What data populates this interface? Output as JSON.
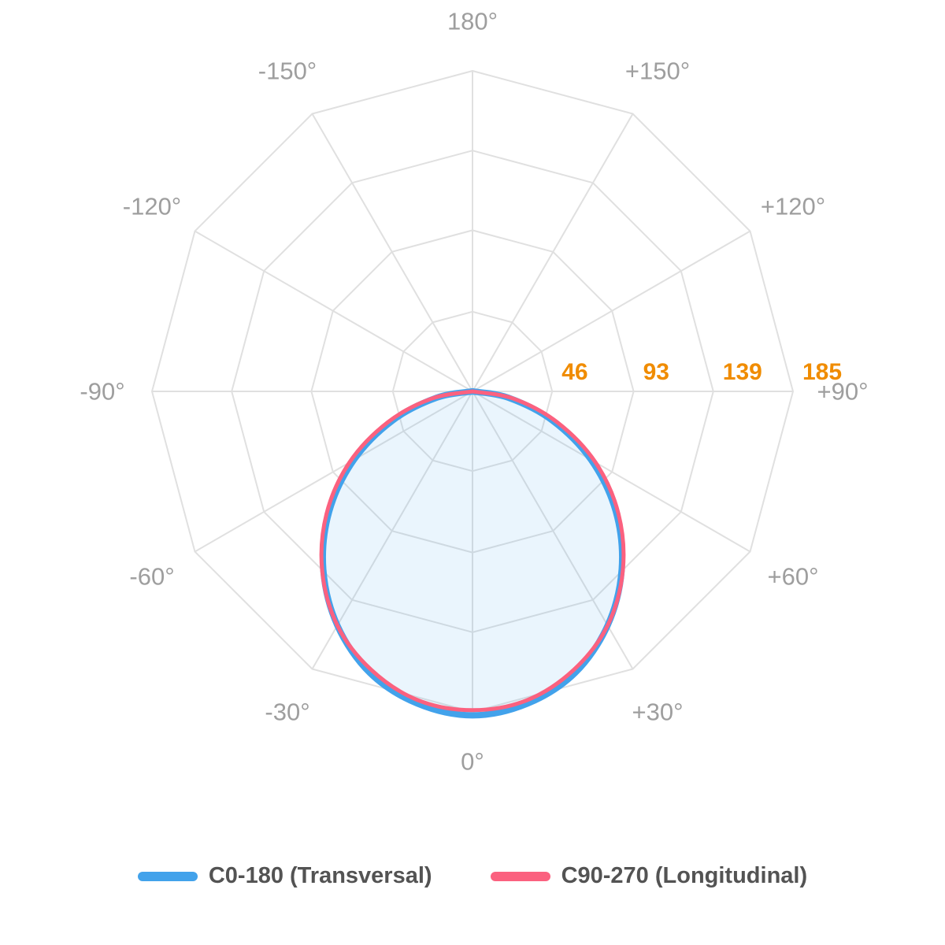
{
  "chart_data": {
    "type": "polar-photometric",
    "description": "Luminous intensity distribution polar curve, 0 degrees at bottom",
    "angle_axis": {
      "ticks": [
        {
          "deg": 0,
          "label": "0°"
        },
        {
          "deg": 30,
          "label": "+30°"
        },
        {
          "deg": 60,
          "label": "+60°"
        },
        {
          "deg": 90,
          "label": "+90°"
        },
        {
          "deg": 120,
          "label": "+120°"
        },
        {
          "deg": 150,
          "label": "+150°"
        },
        {
          "deg": 180,
          "label": "180°"
        },
        {
          "deg": -150,
          "label": "-150°"
        },
        {
          "deg": -120,
          "label": "-120°"
        },
        {
          "deg": -90,
          "label": "-90°"
        },
        {
          "deg": -60,
          "label": "-60°"
        },
        {
          "deg": -30,
          "label": "-30°"
        }
      ],
      "spoke_step_deg": 30
    },
    "radial_axis": {
      "ticks": [
        46,
        93,
        139,
        185
      ],
      "max": 185
    },
    "series": [
      {
        "name": "C0-180 (Transversal)",
        "color": "#42A2EB",
        "area_fill": "rgba(66,162,235,0.11)",
        "line_width": 8,
        "angles_deg": [
          -90,
          -80,
          -70,
          -60,
          -50,
          -40,
          -30,
          -20,
          -10,
          0,
          10,
          20,
          30,
          40,
          50,
          60,
          70,
          80,
          90
        ],
        "values": [
          0,
          21,
          49,
          79,
          108,
          134,
          156,
          173,
          183,
          187,
          183,
          173,
          156,
          134,
          108,
          79,
          49,
          21,
          0
        ]
      },
      {
        "name": "C90-270 (Longitudinal)",
        "color": "#FB617F",
        "area_fill": null,
        "line_width": 5,
        "angles_deg": [
          -90,
          -80,
          -70,
          -60,
          -50,
          -40,
          -30,
          -20,
          -10,
          0,
          10,
          20,
          30,
          40,
          50,
          60,
          70,
          80,
          90
        ],
        "values": [
          0,
          24,
          52,
          82,
          110,
          135,
          156,
          171,
          181,
          184,
          181,
          171,
          156,
          135,
          110,
          82,
          52,
          24,
          0
        ]
      }
    ],
    "legend": {
      "items": [
        {
          "label": "C0-180 (Transversal)",
          "color": "#42A2EB"
        },
        {
          "label": "C90-270 (Longitudinal)",
          "color": "#FB617F"
        }
      ]
    },
    "colors": {
      "grid_line": "#E0E0E0",
      "angle_label": "#9E9E9E",
      "radial_tick_label": "#F08C00",
      "legend_text": "#535353",
      "background": "#FFFFFF"
    }
  }
}
